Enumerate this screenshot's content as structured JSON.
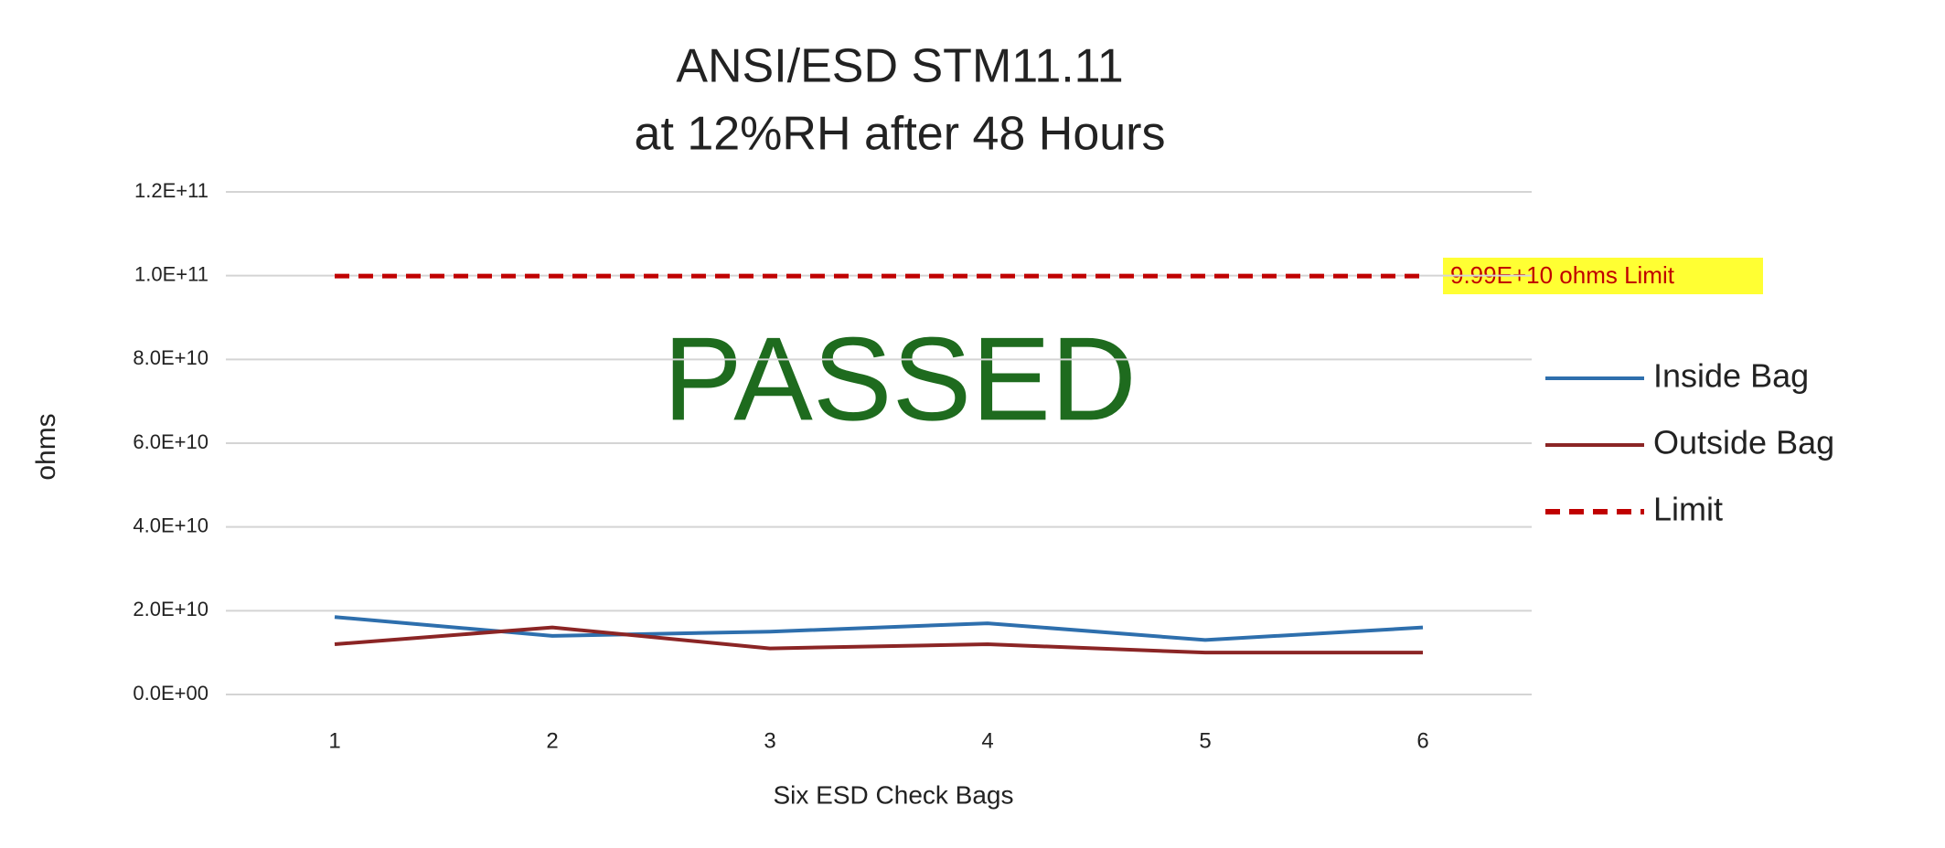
{
  "chart_data": {
    "type": "line",
    "title": [
      "ANSI/ESD STM11.11",
      "at 12%RH after 48 Hours"
    ],
    "x_label": "Six ESD Check Bags",
    "y_label": "ohms",
    "categories": [
      "1",
      "2",
      "3",
      "4",
      "5",
      "6"
    ],
    "series": [
      {
        "name": "Inside Bag",
        "color": "#2e6fad",
        "dashed": false,
        "values": [
          18500000000,
          14000000000,
          15000000000,
          17000000000,
          13000000000,
          16000000000
        ]
      },
      {
        "name": "Outside Bag",
        "color": "#8b2525",
        "dashed": false,
        "values": [
          12000000000,
          16000000000,
          11000000000,
          12000000000,
          10000000000,
          10000000000
        ]
      },
      {
        "name": "Limit",
        "color": "#c00000",
        "dashed": true,
        "values": [
          99900000000,
          99900000000,
          99900000000,
          99900000000,
          99900000000,
          99900000000
        ]
      }
    ],
    "ylim": [
      0,
      120000000000
    ],
    "yticks": [
      {
        "value": 0,
        "label": "0.0E+00"
      },
      {
        "value": 20000000000,
        "label": "2.0E+10"
      },
      {
        "value": 40000000000,
        "label": "4.0E+10"
      },
      {
        "value": 60000000000,
        "label": "6.0E+10"
      },
      {
        "value": 80000000000,
        "label": "8.0E+10"
      },
      {
        "value": 100000000000,
        "label": "1.0E+11"
      },
      {
        "value": 120000000000,
        "label": "1.2E+11"
      }
    ],
    "grid": true,
    "legend": "right",
    "limit_label": "9.99E+10 ohms Limit",
    "status_text": "PASSED"
  }
}
